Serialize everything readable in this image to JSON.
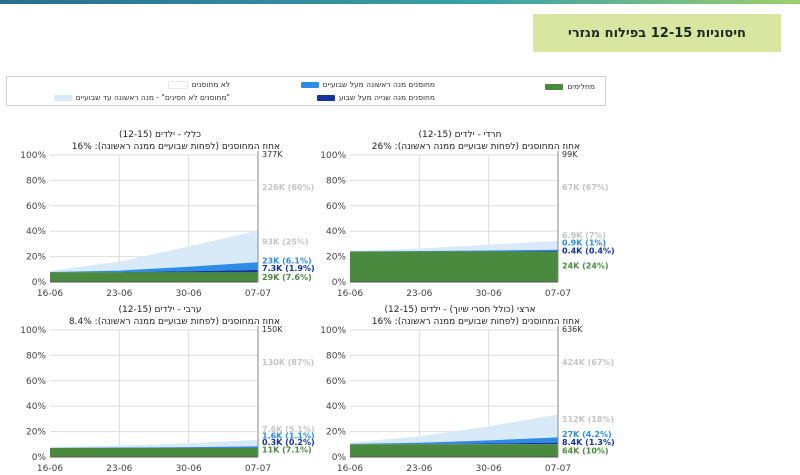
{
  "header": {
    "title": "חיסוניות 12-15 בפילוח מגזרי"
  },
  "legend": [
    {
      "label": "מחלימים",
      "color": "#4a8a3f"
    },
    {
      "label": "מחוסנים מנה ראשונה מעל שבועיים",
      "color": "#2e8ce6"
    },
    {
      "label": "מחוסנים מנה שנייה מעל שבוע",
      "color": "#14349a"
    },
    {
      "label": "לא מחוסנים",
      "color": "#ffffff"
    },
    {
      "label": "\"מחוסנים לא חסינים\" - מנה ראשונה עד שבועיים",
      "color": "#d8e9f8"
    }
  ],
  "colors": {
    "recovered": "#4a8a3f",
    "first_dose": "#2e8ce6",
    "second_dose": "#14349a",
    "recent_first": "#d8e9f8",
    "grid": "#dddddd"
  },
  "chart_data": [
    {
      "type": "area",
      "title": "כללי - ילדים (12-15)",
      "subtitle": "אחוז המחוסנים (לפחות שבועיים ממנה ראשונה): 16%",
      "x_ticks": [
        "16-06",
        "23-06",
        "30-06",
        "07-07"
      ],
      "y_ticks": [
        "0%",
        "20%",
        "40%",
        "60%",
        "80%",
        "100%"
      ],
      "ylim": [
        0,
        100
      ],
      "total_label": "377K",
      "annotations": [
        {
          "text": "226K (60%)",
          "y": 75,
          "color": "#c4c4c4"
        },
        {
          "text": "93K (25%)",
          "y": 32,
          "color": "#c4c4c4"
        },
        {
          "text": "23K (6.1%)",
          "y": 17,
          "color": "#2e8ce6"
        },
        {
          "text": "7.3K (1.9%)",
          "y": 11,
          "color": "#14349a"
        },
        {
          "text": "29K (7.6%)",
          "y": 4,
          "color": "#4a8a3f"
        }
      ],
      "series": [
        {
          "name": "מחלימים",
          "x": [
            "16-06",
            "07-07"
          ],
          "values": [
            7.6,
            7.6
          ]
        },
        {
          "name": "מחוסנים מנה ראשונה מעל שבועיים",
          "x": [
            "16-06",
            "23-06",
            "30-06",
            "07-07"
          ],
          "values": [
            0.3,
            1.2,
            3.5,
            6.1
          ]
        },
        {
          "name": "מחוסנים מנה שנייה מעל שבוע",
          "x": [
            "16-06",
            "23-06",
            "30-06",
            "07-07"
          ],
          "values": [
            0,
            0.2,
            0.9,
            1.9
          ]
        },
        {
          "name": "\"מחוסנים לא חסינים\" - מנה ראשונה עד שבועיים",
          "x": [
            "16-06",
            "23-06",
            "30-06",
            "07-07"
          ],
          "values": [
            1,
            7,
            16,
            25
          ]
        }
      ]
    },
    {
      "type": "area",
      "title": "חרדי - ילדים (12-15)",
      "subtitle": "אחוז המחוסנים (לפחות שבועיים ממנה ראשונה): 26%",
      "x_ticks": [
        "16-06",
        "23-06",
        "30-06",
        "07-07"
      ],
      "y_ticks": [
        "0%",
        "20%",
        "40%",
        "60%",
        "80%",
        "100%"
      ],
      "ylim": [
        0,
        100
      ],
      "total_label": "99K",
      "annotations": [
        {
          "text": "67K (67%)",
          "y": 75,
          "color": "#c4c4c4"
        },
        {
          "text": "6.9K (7%)",
          "y": 37,
          "color": "#c4c4c4"
        },
        {
          "text": "0.9K (1%)",
          "y": 31,
          "color": "#2e8ce6"
        },
        {
          "text": "0.4K (0.4%)",
          "y": 25,
          "color": "#14349a"
        },
        {
          "text": "24K (24%)",
          "y": 13,
          "color": "#4a8a3f"
        }
      ],
      "series": [
        {
          "name": "מחלימים",
          "x": [
            "16-06",
            "07-07"
          ],
          "values": [
            24,
            24
          ]
        },
        {
          "name": "מחוסנים מנה ראשונה מעל שבועיים",
          "x": [
            "16-06",
            "23-06",
            "30-06",
            "07-07"
          ],
          "values": [
            0.1,
            0.3,
            0.6,
            1
          ]
        },
        {
          "name": "מחוסנים מנה שנייה מעל שבוע",
          "x": [
            "16-06",
            "23-06",
            "30-06",
            "07-07"
          ],
          "values": [
            0,
            0.1,
            0.2,
            0.4
          ]
        },
        {
          "name": "\"מחוסנים לא חסינים\" - מנה ראשונה עד שבועיים",
          "x": [
            "16-06",
            "23-06",
            "30-06",
            "07-07"
          ],
          "values": [
            0.5,
            2,
            4.5,
            7
          ]
        }
      ]
    },
    {
      "type": "area",
      "title": "ערבי - ילדים (12-15)",
      "subtitle": "אחוז המחוסנים (לפחות שבועיים ממנה ראשונה): 8.4%",
      "x_ticks": [
        "16-06",
        "23-06",
        "30-06",
        "07-07"
      ],
      "y_ticks": [
        "0%",
        "20%",
        "40%",
        "60%",
        "80%",
        "100%"
      ],
      "ylim": [
        0,
        100
      ],
      "total_label": "150K",
      "annotations": [
        {
          "text": "130K (87%)",
          "y": 75,
          "color": "#c4c4c4"
        },
        {
          "text": "7.6K (5.1%)",
          "y": 22,
          "color": "#c4c4c4"
        },
        {
          "text": "1.6K (1.1%)",
          "y": 17,
          "color": "#2e8ce6"
        },
        {
          "text": "0.3K (0.2%)",
          "y": 12,
          "color": "#14349a"
        },
        {
          "text": "11K (7.1%)",
          "y": 6,
          "color": "#4a8a3f"
        }
      ],
      "series": [
        {
          "name": "מחלימים",
          "x": [
            "16-06",
            "07-07"
          ],
          "values": [
            7.1,
            7.1
          ]
        },
        {
          "name": "מחוסנים מנה ראשונה מעל שבועיים",
          "x": [
            "16-06",
            "23-06",
            "30-06",
            "07-07"
          ],
          "values": [
            0.1,
            0.3,
            0.6,
            1.1
          ]
        },
        {
          "name": "מחוסנים מנה שנייה מעל שבוע",
          "x": [
            "16-06",
            "23-06",
            "30-06",
            "07-07"
          ],
          "values": [
            0,
            0.05,
            0.1,
            0.2
          ]
        },
        {
          "name": "\"מחוסנים לא חסינים\" - מנה ראשונה עד שבועיים",
          "x": [
            "16-06",
            "23-06",
            "30-06",
            "07-07"
          ],
          "values": [
            0.5,
            1.5,
            3,
            5.1
          ]
        }
      ]
    },
    {
      "type": "area",
      "title": "ארצי (כולל חסרי שיוך) - ילדים (12-15)",
      "subtitle": "אחוז המחוסנים (לפחות שבועיים ממנה ראשונה): 16%",
      "x_ticks": [
        "16-06",
        "23-06",
        "30-06",
        "07-07"
      ],
      "y_ticks": [
        "0%",
        "20%",
        "40%",
        "60%",
        "80%",
        "100%"
      ],
      "ylim": [
        0,
        100
      ],
      "total_label": "636K",
      "annotations": [
        {
          "text": "424K (67%)",
          "y": 75,
          "color": "#c4c4c4"
        },
        {
          "text": "112K (18%)",
          "y": 30,
          "color": "#c4c4c4"
        },
        {
          "text": "27K (4.2%)",
          "y": 18,
          "color": "#2e8ce6"
        },
        {
          "text": "8.4K (1.3%)",
          "y": 12,
          "color": "#14349a"
        },
        {
          "text": "64K (10%)",
          "y": 5,
          "color": "#4a8a3f"
        }
      ],
      "series": [
        {
          "name": "מחלימים",
          "x": [
            "16-06",
            "07-07"
          ],
          "values": [
            10,
            10
          ]
        },
        {
          "name": "מחוסנים מנה ראשונה מעל שבועיים",
          "x": [
            "16-06",
            "23-06",
            "30-06",
            "07-07"
          ],
          "values": [
            0.3,
            1,
            2.5,
            4.2
          ]
        },
        {
          "name": "מחוסנים מנה שנייה מעל שבוע",
          "x": [
            "16-06",
            "23-06",
            "30-06",
            "07-07"
          ],
          "values": [
            0,
            0.2,
            0.6,
            1.3
          ]
        },
        {
          "name": "\"מחוסנים לא חסינים\" - מנה ראשונה עד שבועיים",
          "x": [
            "16-06",
            "23-06",
            "30-06",
            "07-07"
          ],
          "values": [
            1,
            5,
            11,
            18
          ]
        }
      ]
    }
  ]
}
